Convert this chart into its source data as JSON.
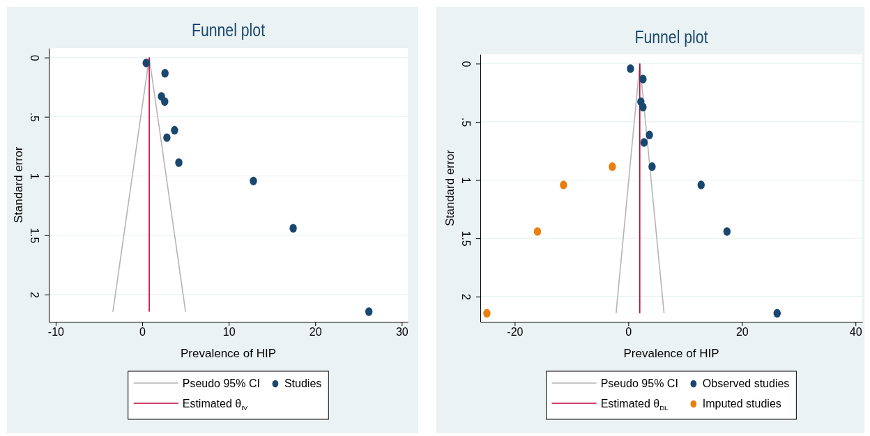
{
  "chart_data": [
    {
      "type": "scatter",
      "title": "Funnel plot",
      "xlabel": "Prevalence of HIP",
      "ylabel": "Standard error",
      "xlim": [
        -10.8,
        30.7
      ],
      "xticks": [
        -10,
        0,
        10,
        20,
        30
      ],
      "ylim": [
        2.23,
        -0.08
      ],
      "yticks": [
        0,
        {
          "value": 0.5,
          "label": ".5"
        },
        1,
        1.5,
        2
      ],
      "grid": "y",
      "legend": "bottom",
      "marker": "circle",
      "series": [
        {
          "type": "line",
          "marker": "none",
          "name": "Pseudo 95% CI",
          "color": "#b4b4b4",
          "x": [
            -3.39,
            0.81,
            5.01
          ],
          "values": [
            2.145,
            0,
            2.145
          ]
        },
        {
          "type": "line",
          "marker": "none",
          "name": "Estimated θ$_{IV}$",
          "color": "#c10534",
          "x": [
            0.81,
            0.81
          ],
          "values": [
            0,
            2.145
          ]
        },
        {
          "name": "Studies",
          "color": "#1a476f",
          "x": [
            0.46,
            2.63,
            2.22,
            2.6,
            3.74,
            2.85,
            4.23,
            12.85,
            17.45,
            26.2
          ],
          "values": [
            0.046,
            0.133,
            0.328,
            0.372,
            0.614,
            0.676,
            0.887,
            1.042,
            1.441,
            2.145
          ]
        }
      ]
    },
    {
      "type": "scatter",
      "title": "Funnel plot",
      "xlabel": "Prevalence of HIP",
      "ylabel": "Standard error",
      "xlim": [
        -26.06,
        41.2
      ],
      "xticks": [
        -20,
        0,
        20,
        40
      ],
      "ylim": [
        2.217,
        -0.08
      ],
      "yticks": [
        0,
        {
          "value": 0.5,
          "label": ".5"
        },
        1,
        1.5,
        2
      ],
      "grid": "y",
      "legend": "bottom",
      "marker": "circle",
      "series": [
        {
          "type": "line",
          "marker": "none",
          "name": "Pseudo 95% CI",
          "color": "#b4b4b4",
          "x": [
            -2.16,
            2.02,
            6.29
          ],
          "values": [
            2.144,
            0,
            2.144
          ]
        },
        {
          "type": "line",
          "marker": "none",
          "name": "Estimated θ$_{DL}$",
          "color": "#c10534",
          "x": [
            2.02,
            2.02
          ],
          "values": [
            0,
            2.144
          ]
        },
        {
          "name": "Observed studies",
          "color": "#1a476f",
          "x": [
            0.38,
            2.58,
            2.21,
            2.58,
            3.71,
            2.77,
            4.18,
            12.82,
            17.37,
            26.2
          ],
          "values": [
            0.043,
            0.133,
            0.327,
            0.373,
            0.613,
            0.677,
            0.885,
            1.042,
            1.442,
            2.144
          ]
        },
        {
          "name": "Imputed studies",
          "color": "#e8800f",
          "x": [
            -2.82,
            -11.41,
            -16.0,
            -24.9
          ],
          "values": [
            0.885,
            1.042,
            1.442,
            2.144
          ]
        }
      ]
    }
  ]
}
